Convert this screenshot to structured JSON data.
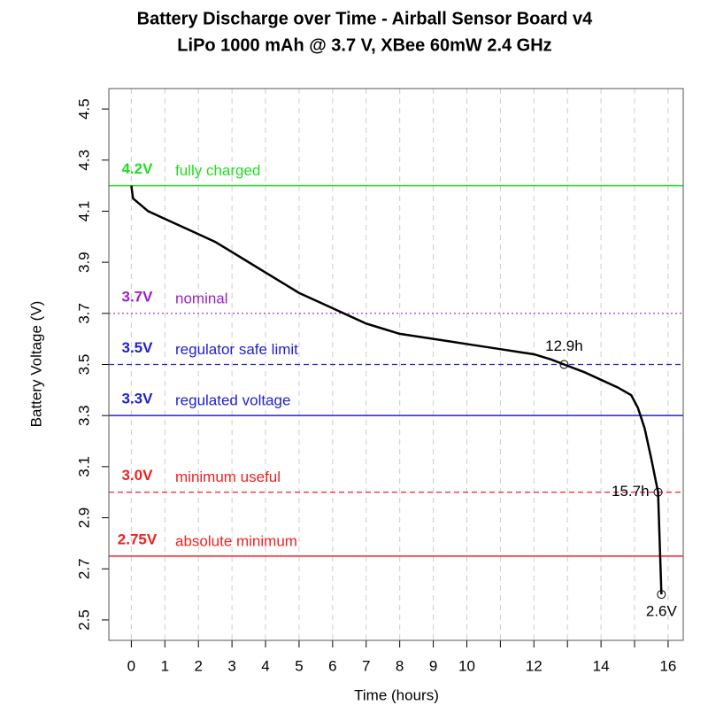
{
  "chart_data": {
    "type": "line",
    "title": "Battery Discharge over Time - Airball Sensor Board v4",
    "subtitle": "LiPo 1000 mAh @ 3.7 V, XBee 60mW 2.4 GHz",
    "x_label": "Time (hours)",
    "y_label": "Battery Voltage (V)",
    "xlim": [
      -0.67,
      16.45
    ],
    "ylim": [
      2.42,
      4.58
    ],
    "xticks": [
      0,
      1,
      2,
      3,
      4,
      5,
      6,
      7,
      8,
      9,
      10,
      12,
      14,
      16
    ],
    "xgrid": [
      0,
      1,
      2,
      3,
      4,
      5,
      6,
      7,
      8,
      9,
      10,
      11,
      12,
      13,
      14,
      15,
      16
    ],
    "yticks": [
      2.5,
      2.7,
      2.9,
      3.1,
      3.3,
      3.5,
      3.7,
      3.9,
      4.1,
      4.3,
      4.5
    ],
    "grid": true,
    "series": [
      {
        "color": "#000000",
        "x": [
          0,
          0.05,
          0.5,
          1,
          1.5,
          2,
          2.5,
          3,
          3.5,
          4,
          4.5,
          5,
          5.5,
          6,
          6.5,
          7,
          7.5,
          8,
          8.5,
          9,
          9.5,
          10,
          10.5,
          11,
          11.5,
          12,
          12.5,
          12.9,
          13.5,
          14,
          14.5,
          14.9,
          15.1,
          15.3,
          15.5,
          15.7,
          15.75,
          15.8
        ],
        "values": [
          4.2,
          4.15,
          4.1,
          4.07,
          4.04,
          4.01,
          3.98,
          3.94,
          3.9,
          3.86,
          3.82,
          3.78,
          3.75,
          3.72,
          3.69,
          3.66,
          3.64,
          3.62,
          3.61,
          3.6,
          3.59,
          3.58,
          3.57,
          3.56,
          3.55,
          3.54,
          3.52,
          3.5,
          3.47,
          3.44,
          3.41,
          3.38,
          3.33,
          3.25,
          3.13,
          3.0,
          2.8,
          2.6
        ]
      }
    ],
    "reference_lines": [
      {
        "value": 4.2,
        "label": "4.2V",
        "text": "fully charged",
        "color": "#22dd22",
        "style": "solid"
      },
      {
        "value": 3.7,
        "label": "3.7V",
        "text": "nominal",
        "color": "#9922cc",
        "style": "dotted"
      },
      {
        "value": 3.5,
        "label": "3.5V",
        "text": "regulator safe limit",
        "color": "#2222cc",
        "style": "dashed"
      },
      {
        "value": 3.3,
        "label": "3.3V",
        "text": "regulated voltage",
        "color": "#2222cc",
        "style": "solid"
      },
      {
        "value": 3.0,
        "label": "3.0V",
        "text": "minimum useful",
        "color": "#ee2222",
        "style": "dashed"
      },
      {
        "value": 2.75,
        "label": "2.75V",
        "text": "absolute minimum",
        "color": "#ee2222",
        "style": "solid"
      }
    ],
    "markers": [
      {
        "x": 12.9,
        "y": 3.5,
        "label": "12.9h",
        "pos": "above"
      },
      {
        "x": 15.7,
        "y": 3.0,
        "label": "15.7h",
        "pos": "left"
      },
      {
        "x": 15.8,
        "y": 2.6,
        "label": "2.6V",
        "pos": "below"
      }
    ]
  }
}
